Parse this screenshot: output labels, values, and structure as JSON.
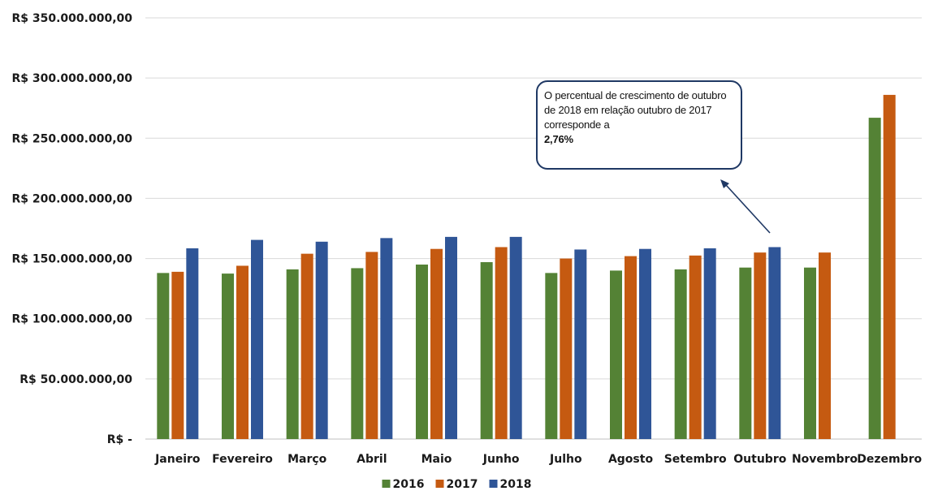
{
  "chart_data": {
    "type": "bar",
    "categories": [
      "Janeiro",
      "Fevereiro",
      "Março",
      "Abril",
      "Maio",
      "Junho",
      "Julho",
      "Agosto",
      "Setembro",
      "Outubro",
      "Novembro",
      "Dezembro"
    ],
    "series": [
      {
        "name": "2016",
        "color": "#548235",
        "values": [
          138000000,
          137500000,
          141000000,
          142000000,
          145000000,
          147000000,
          138000000,
          140000000,
          141000000,
          142500000,
          142500000,
          267000000
        ]
      },
      {
        "name": "2017",
        "color": "#c55a11",
        "values": [
          139000000,
          144000000,
          154000000,
          155500000,
          158000000,
          159500000,
          150000000,
          152000000,
          152500000,
          155000000,
          155000000,
          286000000
        ]
      },
      {
        "name": "2018",
        "color": "#2f5597",
        "values": [
          158500000,
          165500000,
          164000000,
          167000000,
          168000000,
          168000000,
          157500000,
          158000000,
          158500000,
          159500000,
          null,
          null
        ]
      }
    ],
    "yticks": [
      {
        "value": 0,
        "label": "R$ -"
      },
      {
        "value": 50000000,
        "label": "R$ 50.000.000,00"
      },
      {
        "value": 100000000,
        "label": "R$ 100.000.000,00"
      },
      {
        "value": 150000000,
        "label": "R$ 150.000.000,00"
      },
      {
        "value": 200000000,
        "label": "R$ 200.000.000,00"
      },
      {
        "value": 250000000,
        "label": "R$ 250.000.000,00"
      },
      {
        "value": 300000000,
        "label": "R$ 300.000.000,00"
      },
      {
        "value": 350000000,
        "label": "R$ 350.000.000,00"
      }
    ],
    "ylim": [
      0,
      350000000
    ],
    "grid": true,
    "legend_position": "bottom",
    "title": "",
    "xlabel": "",
    "ylabel": ""
  },
  "annotation": {
    "text": "O percentual de crescimento de outubro de 2018 em relação outubro de 2017 corresponde a",
    "value": "2,76%",
    "target_category": "Outubro",
    "target_series": "2018"
  }
}
